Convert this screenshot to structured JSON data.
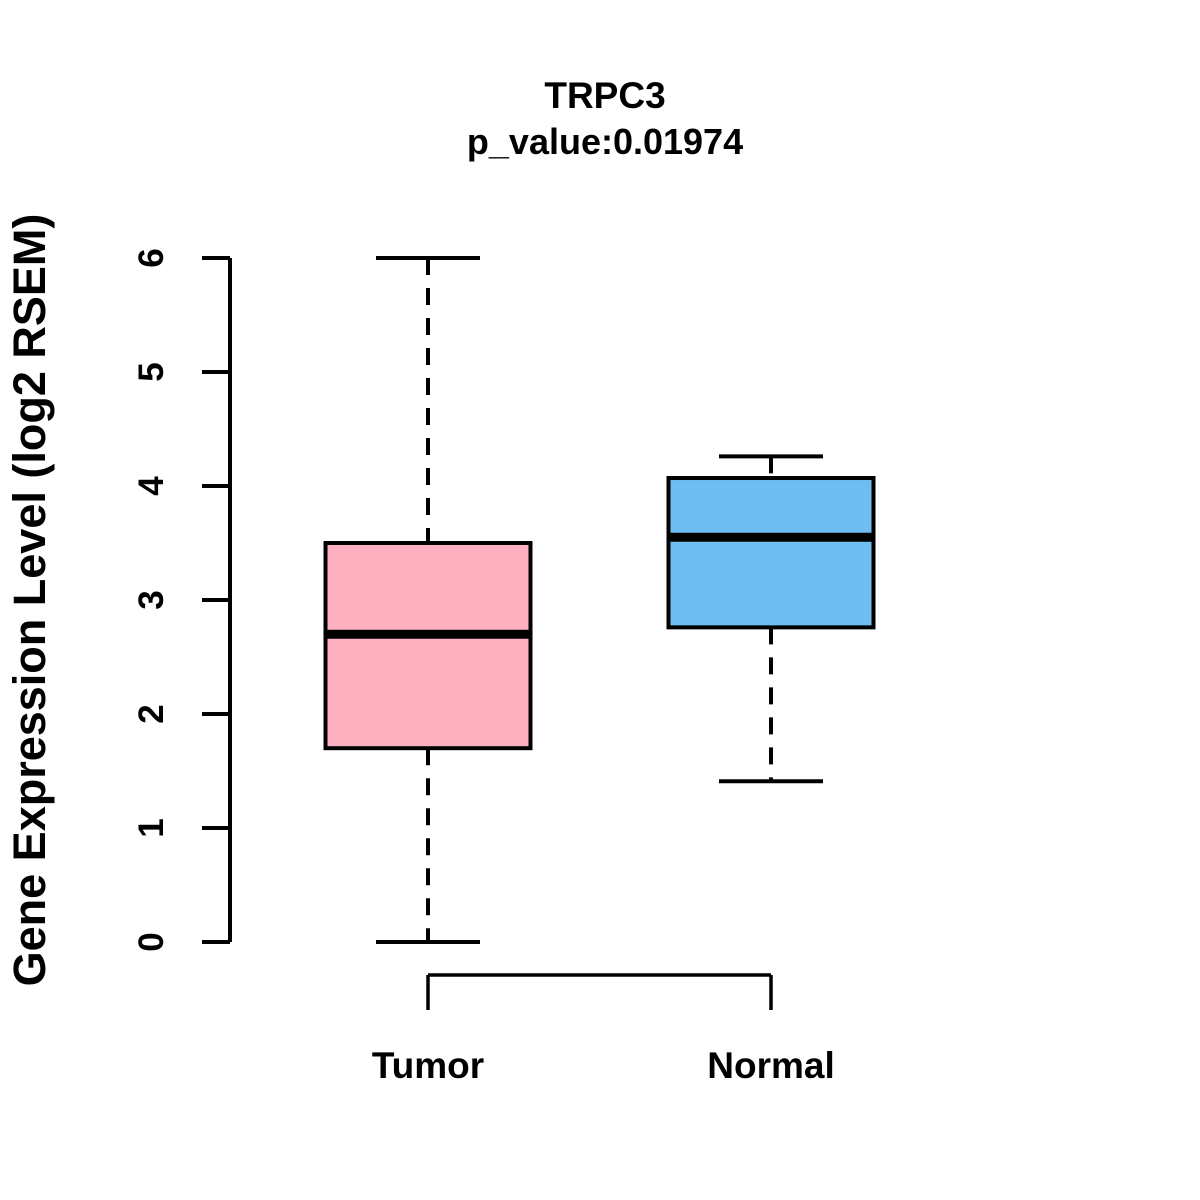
{
  "chart_data": {
    "type": "boxplot",
    "title": "TRPC3",
    "subtitle": "p_value:0.01974",
    "ylabel": "Gene Expression Level (log2 RSEM)",
    "xlabel": "",
    "ylim": [
      0,
      6
    ],
    "yticks": [
      0,
      1,
      2,
      3,
      4,
      5,
      6
    ],
    "grid": "off",
    "legend": "none",
    "categories": [
      "Tumor",
      "Normal"
    ],
    "series": [
      {
        "name": "Tumor",
        "whisker_low": 0.0,
        "q1": 1.7,
        "median": 2.7,
        "q3": 3.5,
        "whisker_high": 6.0,
        "color": "#FFB1C1"
      },
      {
        "name": "Normal",
        "whisker_low": 1.41,
        "q1": 2.76,
        "median": 3.55,
        "q3": 4.07,
        "whisker_high": 4.26,
        "color": "#6FBEF2"
      }
    ],
    "colors": {
      "tumor_fill": "#FFB1C1",
      "normal_fill": "#6FBEF2",
      "stroke": "#000000",
      "background": "#FFFFFF"
    }
  }
}
